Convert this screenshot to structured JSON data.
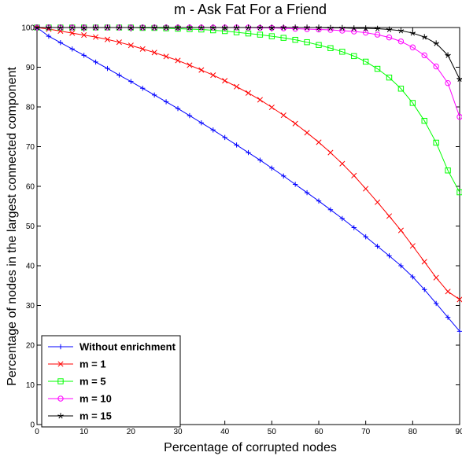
{
  "chart_data": {
    "type": "line",
    "title": "m - Ask Fat For a Friend",
    "xlabel": "Percentage of corrupted nodes",
    "ylabel": "Percentage of nodes in the largest connected component",
    "xlim": [
      0,
      90
    ],
    "ylim": [
      0,
      100
    ],
    "xticks": [
      0,
      10,
      20,
      30,
      40,
      50,
      60,
      70,
      80,
      90
    ],
    "yticks": [
      0,
      10,
      20,
      30,
      40,
      50,
      60,
      70,
      80,
      90,
      100
    ],
    "grid": false,
    "legend_position": "bottom-left",
    "x": [
      0,
      2.5,
      5,
      7.5,
      10,
      12.5,
      15,
      17.5,
      20,
      22.5,
      25,
      27.5,
      30,
      32.5,
      35,
      37.5,
      40,
      42.5,
      45,
      47.5,
      50,
      52.5,
      55,
      57.5,
      60,
      62.5,
      65,
      67.5,
      70,
      72.5,
      75,
      77.5,
      80,
      82.5,
      85,
      87.5,
      90
    ],
    "series": [
      {
        "name": "Without enrichment",
        "color": "#0000ff",
        "marker": "plus",
        "values": [
          100,
          97.8,
          96.2,
          94.6,
          93.0,
          91.3,
          89.7,
          88.0,
          86.4,
          84.7,
          83.0,
          81.3,
          79.6,
          77.8,
          76.0,
          74.2,
          72.3,
          70.4,
          68.5,
          66.6,
          64.6,
          62.6,
          60.5,
          58.4,
          56.3,
          54.1,
          51.9,
          49.6,
          47.3,
          44.9,
          42.5,
          40.0,
          37.2,
          34.0,
          30.5,
          27.0,
          23.5
        ]
      },
      {
        "name": "m = 1",
        "color": "#ff0000",
        "marker": "x",
        "values": [
          100,
          99.6,
          99.1,
          98.6,
          98.1,
          97.6,
          97.0,
          96.3,
          95.5,
          94.6,
          93.7,
          92.7,
          91.7,
          90.5,
          89.3,
          88.0,
          86.6,
          85.1,
          83.5,
          81.8,
          79.9,
          77.9,
          75.8,
          73.5,
          71.1,
          68.5,
          65.7,
          62.7,
          59.4,
          56.0,
          52.5,
          48.9,
          45.0,
          41.0,
          37.0,
          33.5,
          31.5
        ]
      },
      {
        "name": "m = 5",
        "color": "#00ff00",
        "marker": "square",
        "values": [
          100,
          100,
          100,
          100,
          100,
          100,
          100,
          100,
          100,
          99.9,
          99.9,
          99.8,
          99.7,
          99.6,
          99.5,
          99.3,
          99.1,
          98.8,
          98.5,
          98.2,
          97.8,
          97.4,
          96.9,
          96.3,
          95.6,
          94.8,
          93.9,
          92.8,
          91.4,
          89.6,
          87.4,
          84.6,
          81.0,
          76.5,
          71.0,
          64.0,
          58.5
        ]
      },
      {
        "name": "m = 10",
        "color": "#ff00ff",
        "marker": "circle",
        "values": [
          100,
          100,
          100,
          100,
          100,
          100,
          100,
          100,
          100,
          100,
          100,
          100,
          100,
          100,
          100,
          100,
          100,
          100,
          100,
          99.9,
          99.9,
          99.8,
          99.7,
          99.6,
          99.5,
          99.4,
          99.2,
          99.0,
          98.7,
          98.2,
          97.5,
          96.5,
          95.0,
          93.0,
          90.2,
          86.0,
          77.5
        ]
      },
      {
        "name": "m = 15",
        "color": "#000000",
        "marker": "star",
        "values": [
          100,
          100,
          100,
          100,
          100,
          100,
          100,
          100,
          100,
          100,
          100,
          100,
          100,
          100,
          100,
          100,
          100,
          100,
          100,
          100,
          100,
          100,
          100,
          100,
          100,
          99.9,
          99.9,
          99.8,
          99.8,
          99.7,
          99.5,
          99.2,
          98.6,
          97.6,
          96.0,
          93.0,
          87.0
        ]
      }
    ]
  }
}
